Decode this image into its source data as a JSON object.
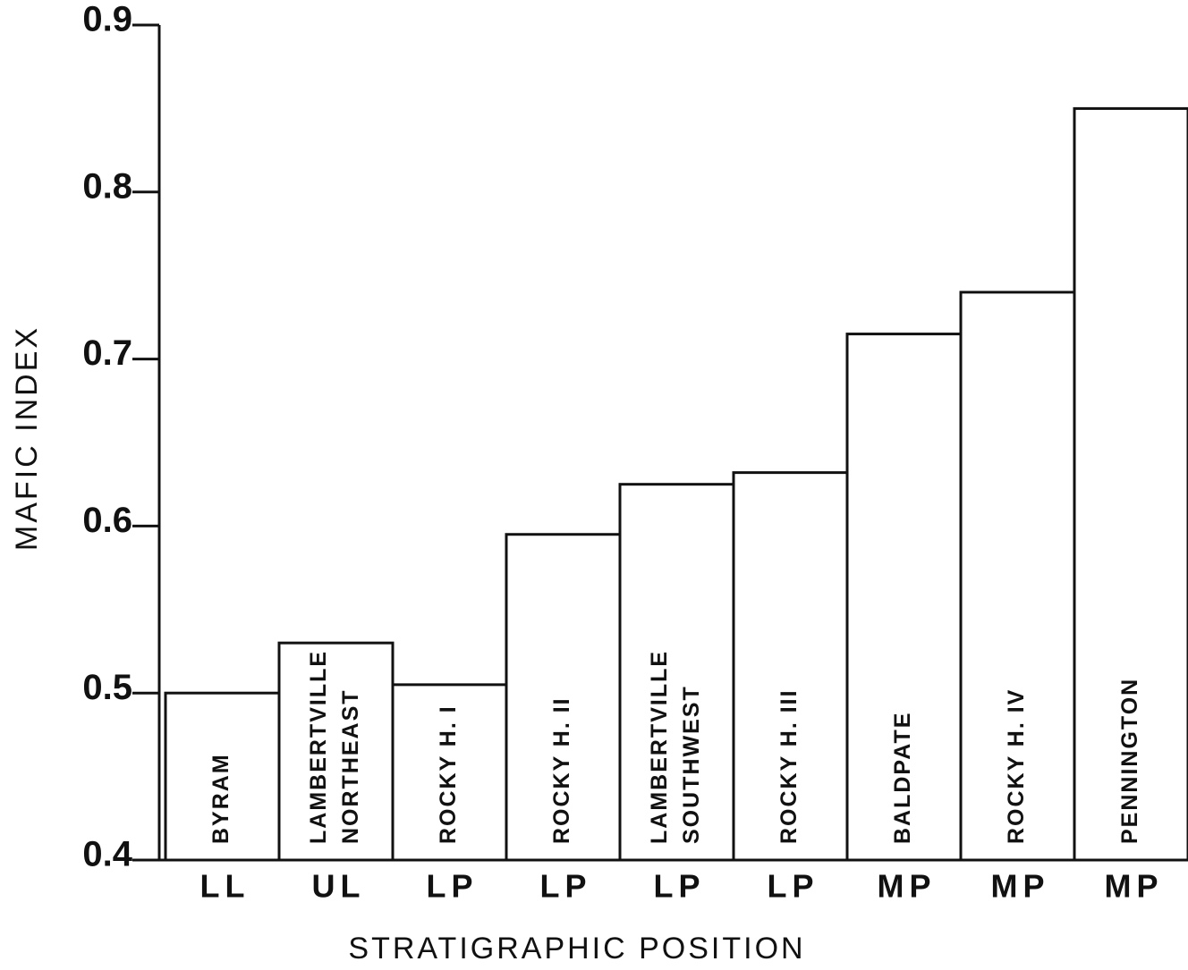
{
  "chart_data": {
    "type": "bar",
    "x_label": "STRATIGRAPHIC  POSITION",
    "y_label": "MAFIC INDEX",
    "categories": [
      [
        "BYRAM"
      ],
      [
        "LAMBERTVILLE",
        "NORTHEAST"
      ],
      [
        "ROCKY H. I"
      ],
      [
        "ROCKY H. II"
      ],
      [
        "LAMBERTVILLE",
        "SOUTHWEST"
      ],
      [
        "ROCKY H. III"
      ],
      [
        "BALDPATE"
      ],
      [
        "ROCKY H. IV"
      ],
      [
        "PENNINGTON"
      ]
    ],
    "positions": [
      "LL",
      "UL",
      "LP",
      "LP",
      "LP",
      "LP",
      "MP",
      "MP",
      "MP"
    ],
    "values": [
      0.5,
      0.53,
      0.505,
      0.595,
      0.625,
      0.632,
      0.715,
      0.74,
      0.85
    ],
    "color": "#111111",
    "ylim": [
      0.4,
      0.9
    ],
    "yticks": [
      0.4,
      0.5,
      0.6,
      0.7,
      0.8,
      0.9
    ]
  }
}
